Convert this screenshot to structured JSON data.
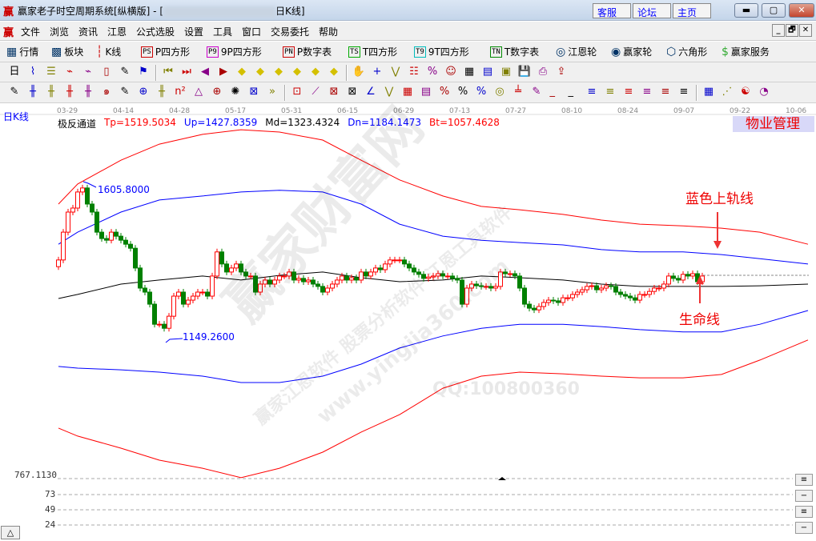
{
  "window": {
    "title_prefix": "赢家老子时空周期系统[纵横版] - [",
    "title_suffix": "日K线]",
    "logo": "赢",
    "links": [
      "客服",
      "论坛",
      "主页"
    ],
    "controls": [
      "minimize",
      "restore",
      "close"
    ]
  },
  "menu": {
    "logo": "赢",
    "items": [
      "文件",
      "浏览",
      "资讯",
      "江恩",
      "公式选股",
      "设置",
      "工具",
      "窗口",
      "交易委托",
      "帮助"
    ],
    "mdi_controls": [
      "_",
      "🗗",
      "✕"
    ]
  },
  "toolbar1": [
    {
      "icon": "quote-table-icon",
      "glyph": "▦",
      "label": "行情"
    },
    {
      "icon": "sector-blocks-icon",
      "glyph": "▩",
      "label": "板块"
    },
    {
      "icon": "candlestick-icon",
      "glyph": "┆",
      "label": "K线"
    },
    {
      "icon": "ps-icon",
      "glyph": "PS",
      "label": "P四方形"
    },
    {
      "icon": "p9-icon",
      "glyph": "P9",
      "label": "9P四方形"
    },
    {
      "icon": "pn-icon",
      "glyph": "PN",
      "label": "P数字表"
    },
    {
      "icon": "ts-icon",
      "glyph": "TS",
      "label": "T四方形"
    },
    {
      "icon": "t9-icon",
      "glyph": "T9",
      "label": "9T四方形"
    },
    {
      "icon": "tn-icon",
      "glyph": "TN",
      "label": "T数字表"
    },
    {
      "icon": "gann-wheel-icon",
      "glyph": "◎",
      "label": "江恩轮"
    },
    {
      "icon": "winner-wheel-icon",
      "glyph": "◉",
      "label": "赢家轮"
    },
    {
      "icon": "hexagon-icon",
      "glyph": "⬡",
      "label": "六角形"
    },
    {
      "icon": "dollar-icon",
      "glyph": "$",
      "label": "赢家服务"
    }
  ],
  "toolbar2": [
    "period-select-icon",
    "layout-icon",
    "notes-icon",
    "chart3-icon",
    "chart9-icon",
    "candle-select-icon",
    "draw-icon",
    "flag-icon",
    "first-icon",
    "last-icon",
    "prev-icon",
    "next-icon",
    "left-icon",
    "right-icon",
    "h-expand-icon",
    "shrink-icon",
    "expand-icon",
    "v-expand-icon",
    "hand-icon",
    "crosshair-icon",
    "line-tool-icon",
    "t1-icon",
    "t2-icon",
    "t3-icon",
    "calendar-icon",
    "calculator-icon",
    "t4-icon",
    "save-icon",
    "print-icon",
    "export-icon"
  ],
  "toolbar3": [
    "pen-icon",
    "grid-icon",
    "gold1-icon",
    "gold2-icon",
    "fib-icon",
    "spiral-icon",
    "marker-icon",
    "circle-icon",
    "lines-icon",
    "n2-icon",
    "triangle-icon",
    "target-icon",
    "web-icon",
    "square-web-icon",
    "more-icon",
    "box-icon",
    "fan-icon",
    "square-fan-icon",
    "square-icon",
    "angle-icon",
    "v-icon",
    "gridbox-icon",
    "t5-icon",
    "percent-icon",
    "pct2-icon",
    "pct3-icon",
    "coin-icon",
    "gold3-icon",
    "pen2-icon",
    "under1-icon",
    "under2-icon",
    "z1-icon",
    "z2-icon",
    "z3-icon",
    "z4-icon",
    "z5-icon",
    "z6-icon",
    "table-icon",
    "chart-line-icon",
    "yinyang-icon",
    "pie-icon"
  ],
  "chart": {
    "period_label": "日K线",
    "indicator_name": "极反通道",
    "indicator_values": [
      "Tp=1519.5034",
      "Up=1427.8359",
      "Md=1323.4324",
      "Dn=1184.1473",
      "Bt=1057.4628"
    ],
    "dates": [
      "03-29",
      "04-14",
      "04-28",
      "05-17",
      "05-31",
      "06-15",
      "06-29",
      "07-13",
      "07-27",
      "08-10",
      "08-24",
      "09-07",
      "09-22",
      "10-06"
    ],
    "high_label": "1605.8000",
    "low_label": "1149.2600",
    "badge": "物业管理",
    "annotation_upper": "蓝色上轨线",
    "annotation_life": "生命线",
    "watermark": [
      "赢家财富网",
      "赢家江恩软件 股票分析软件 江恩工具软件",
      "www.yingjia360.com",
      "QQ:100800360"
    ],
    "lower_axis": [
      "767.1130",
      "73",
      "49",
      "24"
    ],
    "colors": {
      "up": "#ff0000",
      "down": "#008000",
      "tp": "#ff0000",
      "upper": "#0000ff",
      "mid": "#000000",
      "lower": "#0000ff",
      "bt": "#ff0000"
    }
  },
  "chart_data": {
    "type": "candlestick",
    "x_labels": [
      "03-29",
      "04-14",
      "04-28",
      "05-17",
      "05-31",
      "06-15",
      "06-29",
      "07-13",
      "07-27",
      "08-10",
      "08-24",
      "09-07",
      "09-22",
      "10-06"
    ],
    "closes": [
      1386,
      1469,
      1529,
      1541,
      1589,
      1601,
      1553,
      1529,
      1469,
      1450,
      1445,
      1469,
      1457,
      1445,
      1433,
      1421,
      1362,
      1302,
      1290,
      1254,
      1194,
      1194,
      1182,
      1218,
      1278,
      1290,
      1254,
      1266,
      1278,
      1290,
      1290,
      1278,
      1338,
      1410,
      1374,
      1350,
      1362,
      1374,
      1350,
      1338,
      1338,
      1290,
      1314,
      1326,
      1314,
      1326,
      1338,
      1338,
      1350,
      1326,
      1331,
      1321,
      1326,
      1314,
      1307,
      1290,
      1302,
      1314,
      1326,
      1338,
      1326,
      1333,
      1326,
      1350,
      1338,
      1350,
      1362,
      1357,
      1374,
      1386,
      1386,
      1386,
      1374,
      1362,
      1350,
      1343,
      1331,
      1335,
      1338,
      1345,
      1338,
      1338,
      1331,
      1326,
      1254,
      1302,
      1314,
      1309,
      1307,
      1307,
      1302,
      1307,
      1350,
      1345,
      1345,
      1338,
      1302,
      1254,
      1242,
      1237,
      1247,
      1259,
      1266,
      1264,
      1259,
      1273,
      1273,
      1283,
      1290,
      1297,
      1307,
      1309,
      1297,
      1302,
      1309,
      1307,
      1290,
      1283,
      1278,
      1273,
      1266,
      1283,
      1283,
      1292,
      1302,
      1302,
      1314,
      1338,
      1331,
      1326,
      1343,
      1338,
      1345,
      1321,
      1338
    ],
    "bands_index": [
      0,
      4,
      13,
      21,
      30,
      38,
      46,
      55,
      63,
      71,
      80,
      88,
      96,
      105,
      113,
      121,
      130,
      138,
      146,
      156
    ],
    "series": [
      {
        "name": "Tp",
        "values": [
          1553,
          1613,
          1684,
          1732,
          1761,
          1775,
          1768,
          1744,
          1684,
          1625,
          1577,
          1546,
          1536,
          1522,
          1505,
          1493,
          1488,
          1481,
          1469,
          1433
        ]
      },
      {
        "name": "Up",
        "values": [
          1433,
          1469,
          1529,
          1565,
          1577,
          1589,
          1594,
          1589,
          1553,
          1493,
          1457,
          1445,
          1438,
          1431,
          1417,
          1410,
          1410,
          1402,
          1390,
          1374
        ]
      },
      {
        "name": "Md",
        "values": [
          1271,
          1283,
          1314,
          1326,
          1338,
          1326,
          1340,
          1350,
          1333,
          1321,
          1326,
          1338,
          1333,
          1326,
          1314,
          1307,
          1307,
          1307,
          1309,
          1314
        ]
      },
      {
        "name": "Dn",
        "values": [
          1068,
          1063,
          1058,
          1051,
          1039,
          1020,
          1020,
          1039,
          1075,
          1123,
          1159,
          1182,
          1194,
          1194,
          1187,
          1178,
          1171,
          1171,
          1194,
          1235
        ]
      },
      {
        "name": "Bt",
        "values": [
          884,
          860,
          824,
          788,
          764,
          736,
          764,
          812,
          872,
          924,
          1003,
          1039,
          1051,
          1046,
          1039,
          1034,
          1034,
          1044,
          1087,
          1147
        ]
      }
    ],
    "high": 1605.8,
    "low": 1149.26
  }
}
